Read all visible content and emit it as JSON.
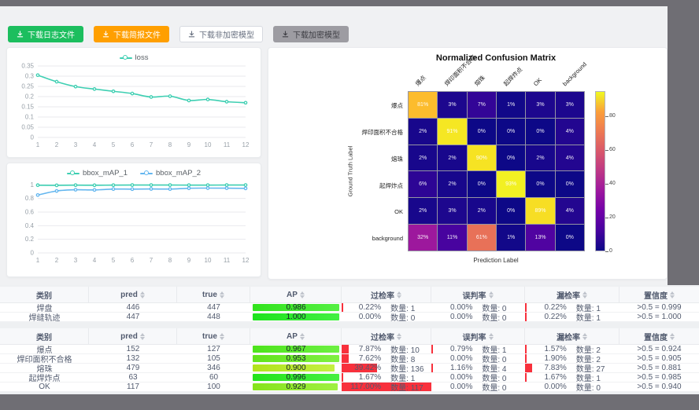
{
  "toolbar": {
    "buttons": [
      {
        "name": "download-log-button",
        "label": "下载日志文件",
        "style": "green",
        "icon": "download-icon"
      },
      {
        "name": "download-report-button",
        "label": "下载简报文件",
        "style": "orange",
        "icon": "download-icon"
      },
      {
        "name": "download-unencrypted-model-button",
        "label": "下载非加密模型",
        "style": "plain",
        "icon": "download-icon"
      },
      {
        "name": "download-encrypted-model-button",
        "label": "下载加密模型",
        "style": "gray",
        "icon": "download-icon"
      }
    ]
  },
  "chart_data": [
    {
      "type": "line",
      "name": "loss-chart",
      "title": "",
      "legend_position": "top",
      "grid": true,
      "x": [
        1,
        2,
        3,
        4,
        5,
        6,
        7,
        8,
        9,
        10,
        11,
        12
      ],
      "series": [
        {
          "name": "loss",
          "color": "#3ecfb2",
          "values": [
            0.305,
            0.273,
            0.249,
            0.237,
            0.226,
            0.215,
            0.198,
            0.202,
            0.181,
            0.186,
            0.175,
            0.17
          ]
        }
      ],
      "yticks": [
        0,
        0.05,
        0.1,
        0.15,
        0.2,
        0.25,
        0.3,
        0.35
      ],
      "ylim": [
        0,
        0.35
      ]
    },
    {
      "type": "line",
      "name": "map-chart",
      "title": "",
      "legend_position": "top",
      "grid": true,
      "x": [
        1,
        2,
        3,
        4,
        5,
        6,
        7,
        8,
        9,
        10,
        11,
        12
      ],
      "series": [
        {
          "name": "bbox_mAP_1",
          "color": "#3ecfb2",
          "values": [
            0.995,
            0.993,
            0.996,
            0.994,
            0.996,
            0.997,
            0.997,
            0.997,
            0.996,
            0.996,
            0.997,
            0.997
          ]
        },
        {
          "name": "bbox_mAP_2",
          "color": "#63b6ef",
          "values": [
            0.85,
            0.91,
            0.928,
            0.925,
            0.938,
            0.937,
            0.94,
            0.938,
            0.95,
            0.952,
            0.951,
            0.948
          ]
        }
      ],
      "yticks": [
        0,
        0.2,
        0.4,
        0.6,
        0.8,
        1
      ],
      "ylim": [
        0,
        1.05
      ]
    },
    {
      "type": "heatmap",
      "name": "confusion-matrix",
      "title": "Normalized Confusion Matrix",
      "xlabel": "Prediction Label",
      "ylabel": "Ground Truth Label",
      "labels": [
        "爆点",
        "焊印面积不合格",
        "熔珠",
        "起焊炸点",
        "OK",
        "background"
      ],
      "rows": [
        [
          81,
          3,
          7,
          1,
          3,
          3
        ],
        [
          2,
          91,
          0,
          0,
          0,
          4
        ],
        [
          2,
          2,
          90,
          0,
          2,
          4
        ],
        [
          6,
          2,
          0,
          93,
          0,
          0
        ],
        [
          2,
          3,
          2,
          0,
          89,
          4
        ],
        [
          32,
          11,
          61,
          1,
          13,
          0
        ]
      ],
      "unit": "%",
      "vmax": 95,
      "colormap": "plasma",
      "colorbar_ticks": [
        0,
        20,
        40,
        60,
        80
      ]
    }
  ],
  "tables": {
    "count_label": "数量",
    "columns": [
      {
        "key": "cls",
        "label": "类别",
        "sortable": false
      },
      {
        "key": "pred",
        "label": "pred",
        "sortable": true
      },
      {
        "key": "true",
        "label": "true",
        "sortable": true
      },
      {
        "key": "ap",
        "label": "AP",
        "sortable": true
      },
      {
        "key": "over",
        "label": "过检率",
        "sortable": true
      },
      {
        "key": "mis",
        "label": "误判率",
        "sortable": true
      },
      {
        "key": "miss",
        "label": "漏检率",
        "sortable": true
      },
      {
        "key": "conf",
        "label": "置信度",
        "sortable": true
      }
    ],
    "groups": [
      {
        "rows": [
          {
            "cls": "焊盘",
            "pred": "446",
            "true": "447",
            "ap": {
              "text": "0.986",
              "value": 0.986
            },
            "over": {
              "pct": "0.22%",
              "value": 0.22,
              "count": "1"
            },
            "mis": {
              "pct": "0.00%",
              "value": 0,
              "count": "0"
            },
            "miss": {
              "pct": "0.22%",
              "value": 0.22,
              "count": "1"
            },
            "conf": ">0.5 = 0.999"
          },
          {
            "cls": "焊缝轨迹",
            "pred": "447",
            "true": "448",
            "ap": {
              "text": "1.000",
              "value": 1.0
            },
            "over": {
              "pct": "0.00%",
              "value": 0,
              "count": "0"
            },
            "mis": {
              "pct": "0.00%",
              "value": 0,
              "count": "0"
            },
            "miss": {
              "pct": "0.22%",
              "value": 0.22,
              "count": "1"
            },
            "conf": ">0.5 = 1.000"
          }
        ]
      },
      {
        "rows": [
          {
            "cls": "爆点",
            "pred": "152",
            "true": "127",
            "ap": {
              "text": "0.967",
              "value": 0.967
            },
            "over": {
              "pct": "7.87%",
              "value": 7.87,
              "count": "10"
            },
            "mis": {
              "pct": "0.79%",
              "value": 0.79,
              "count": "1"
            },
            "miss": {
              "pct": "1.57%",
              "value": 1.57,
              "count": "2"
            },
            "conf": ">0.5 = 0.924"
          },
          {
            "cls": "焊印面积不合格",
            "pred": "132",
            "true": "105",
            "ap": {
              "text": "0.953",
              "value": 0.953
            },
            "over": {
              "pct": "7.62%",
              "value": 7.62,
              "count": "8"
            },
            "mis": {
              "pct": "0.00%",
              "value": 0,
              "count": "0"
            },
            "miss": {
              "pct": "1.90%",
              "value": 1.9,
              "count": "2"
            },
            "conf": ">0.5 = 0.905"
          },
          {
            "cls": "熔珠",
            "pred": "479",
            "true": "346",
            "ap": {
              "text": "0.900",
              "value": 0.9
            },
            "over": {
              "pct": "39.42%",
              "value": 39.42,
              "count": "136"
            },
            "mis": {
              "pct": "1.16%",
              "value": 1.16,
              "count": "4"
            },
            "miss": {
              "pct": "7.83%",
              "value": 7.83,
              "count": "27"
            },
            "conf": ">0.5 = 0.881"
          },
          {
            "cls": "起焊炸点",
            "pred": "63",
            "true": "60",
            "ap": {
              "text": "0.996",
              "value": 0.996
            },
            "over": {
              "pct": "1.67%",
              "value": 1.67,
              "count": "1"
            },
            "mis": {
              "pct": "0.00%",
              "value": 0,
              "count": "0"
            },
            "miss": {
              "pct": "1.67%",
              "value": 1.67,
              "count": "1"
            },
            "conf": ">0.5 = 0.985"
          },
          {
            "cls": "OK",
            "pred": "117",
            "true": "100",
            "ap": {
              "text": "0.929",
              "value": 0.929
            },
            "over": {
              "pct": "117.00%",
              "value": 117,
              "count": "117"
            },
            "mis": {
              "pct": "0.00%",
              "value": 0,
              "count": "0"
            },
            "miss": {
              "pct": "0.00%",
              "value": 0,
              "count": "0"
            },
            "conf": ">0.5 = 0.940"
          }
        ]
      }
    ]
  },
  "colors": {
    "accent_green": "#1cbe5e",
    "accent_orange": "#ff9f00",
    "bar_red": "#f8303c",
    "line_teal": "#3ecfb2",
    "line_blue": "#63b6ef"
  }
}
